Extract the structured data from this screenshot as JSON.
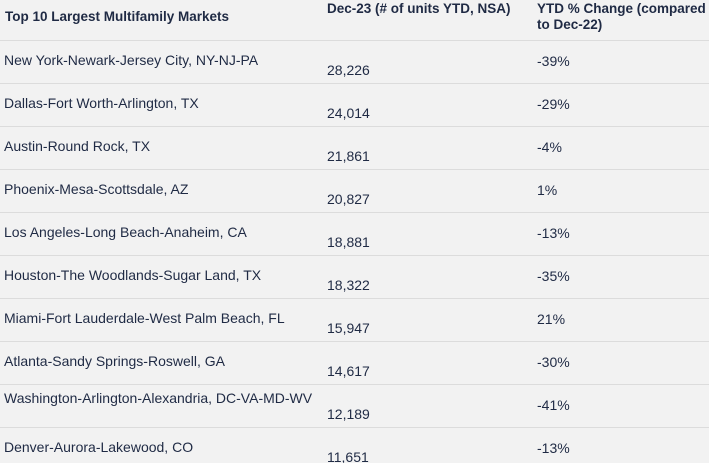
{
  "header": {
    "market": "Top 10 Largest Multifamily Markets",
    "units": "Dec-23 (# of units YTD, NSA)",
    "change": "YTD % Change (compared to Dec-22)"
  },
  "rows": [
    {
      "market": "New York-Newark-Jersey City, NY-NJ-PA",
      "units": "28,226",
      "change": "-39%"
    },
    {
      "market": "Dallas-Fort Worth-Arlington, TX",
      "units": "24,014",
      "change": "-29%"
    },
    {
      "market": "Austin-Round Rock, TX",
      "units": "21,861",
      "change": "-4%"
    },
    {
      "market": "Phoenix-Mesa-Scottsdale, AZ",
      "units": "20,827",
      "change": "1%"
    },
    {
      "market": "Los Angeles-Long Beach-Anaheim, CA",
      "units": "18,881",
      "change": "-13%"
    },
    {
      "market": "Houston-The Woodlands-Sugar Land, TX",
      "units": "18,322",
      "change": "-35%"
    },
    {
      "market": "Miami-Fort Lauderdale-West Palm Beach, FL",
      "units": "15,947",
      "change": "21%"
    },
    {
      "market": "Atlanta-Sandy Springs-Roswell, GA",
      "units": "14,617",
      "change": "-30%"
    },
    {
      "market": "Washington-Arlington-Alexandria, DC-VA-MD-WV",
      "units": "12,189",
      "change": "-41%"
    },
    {
      "market": "Denver-Aurora-Lakewood, CO",
      "units": "11,651",
      "change": "-13%"
    }
  ]
}
